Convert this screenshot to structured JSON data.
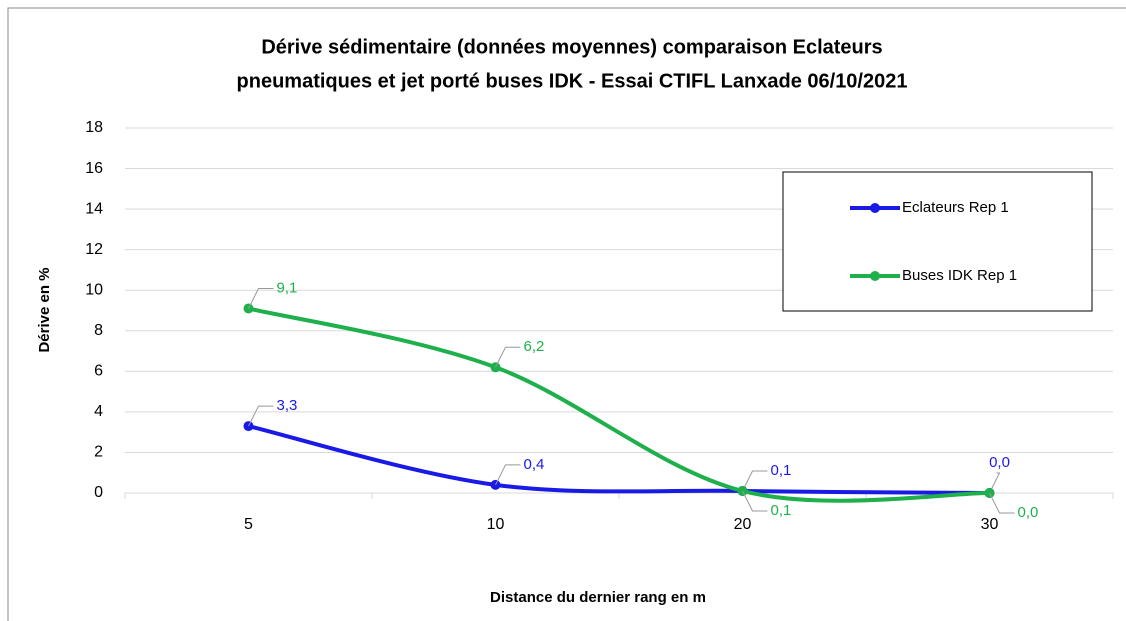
{
  "chart_data": {
    "type": "line",
    "title": [
      "Dérive sédimentaire (données moyennes) comparaison  Eclateurs",
      "pneumatiques et jet porté buses IDK - Essai CTIFL Lanxade 06/10/2021"
    ],
    "x_label": "Distance du dernier rang en m",
    "y_label": "Dérive en %",
    "categories": [
      "5",
      "10",
      "20",
      "30"
    ],
    "series": [
      {
        "name": "Eclateurs Rep 1",
        "color": "#1a1ae6",
        "values": [
          3.3,
          0.4,
          0.1,
          0.0
        ],
        "value_labels": [
          "3,3",
          "0,4",
          "0,1",
          "0,0"
        ]
      },
      {
        "name": "Buses IDK Rep 1",
        "color": "#1fb04c",
        "values": [
          9.1,
          6.2,
          0.1,
          0.0
        ],
        "value_labels": [
          "9,1",
          "6,2",
          "0,1",
          "0,0"
        ]
      }
    ],
    "ylim": [
      0,
      18
    ],
    "yticks": [
      0,
      2,
      4,
      6,
      8,
      10,
      12,
      14,
      16,
      18
    ],
    "grid": true,
    "legend": "upper right"
  }
}
